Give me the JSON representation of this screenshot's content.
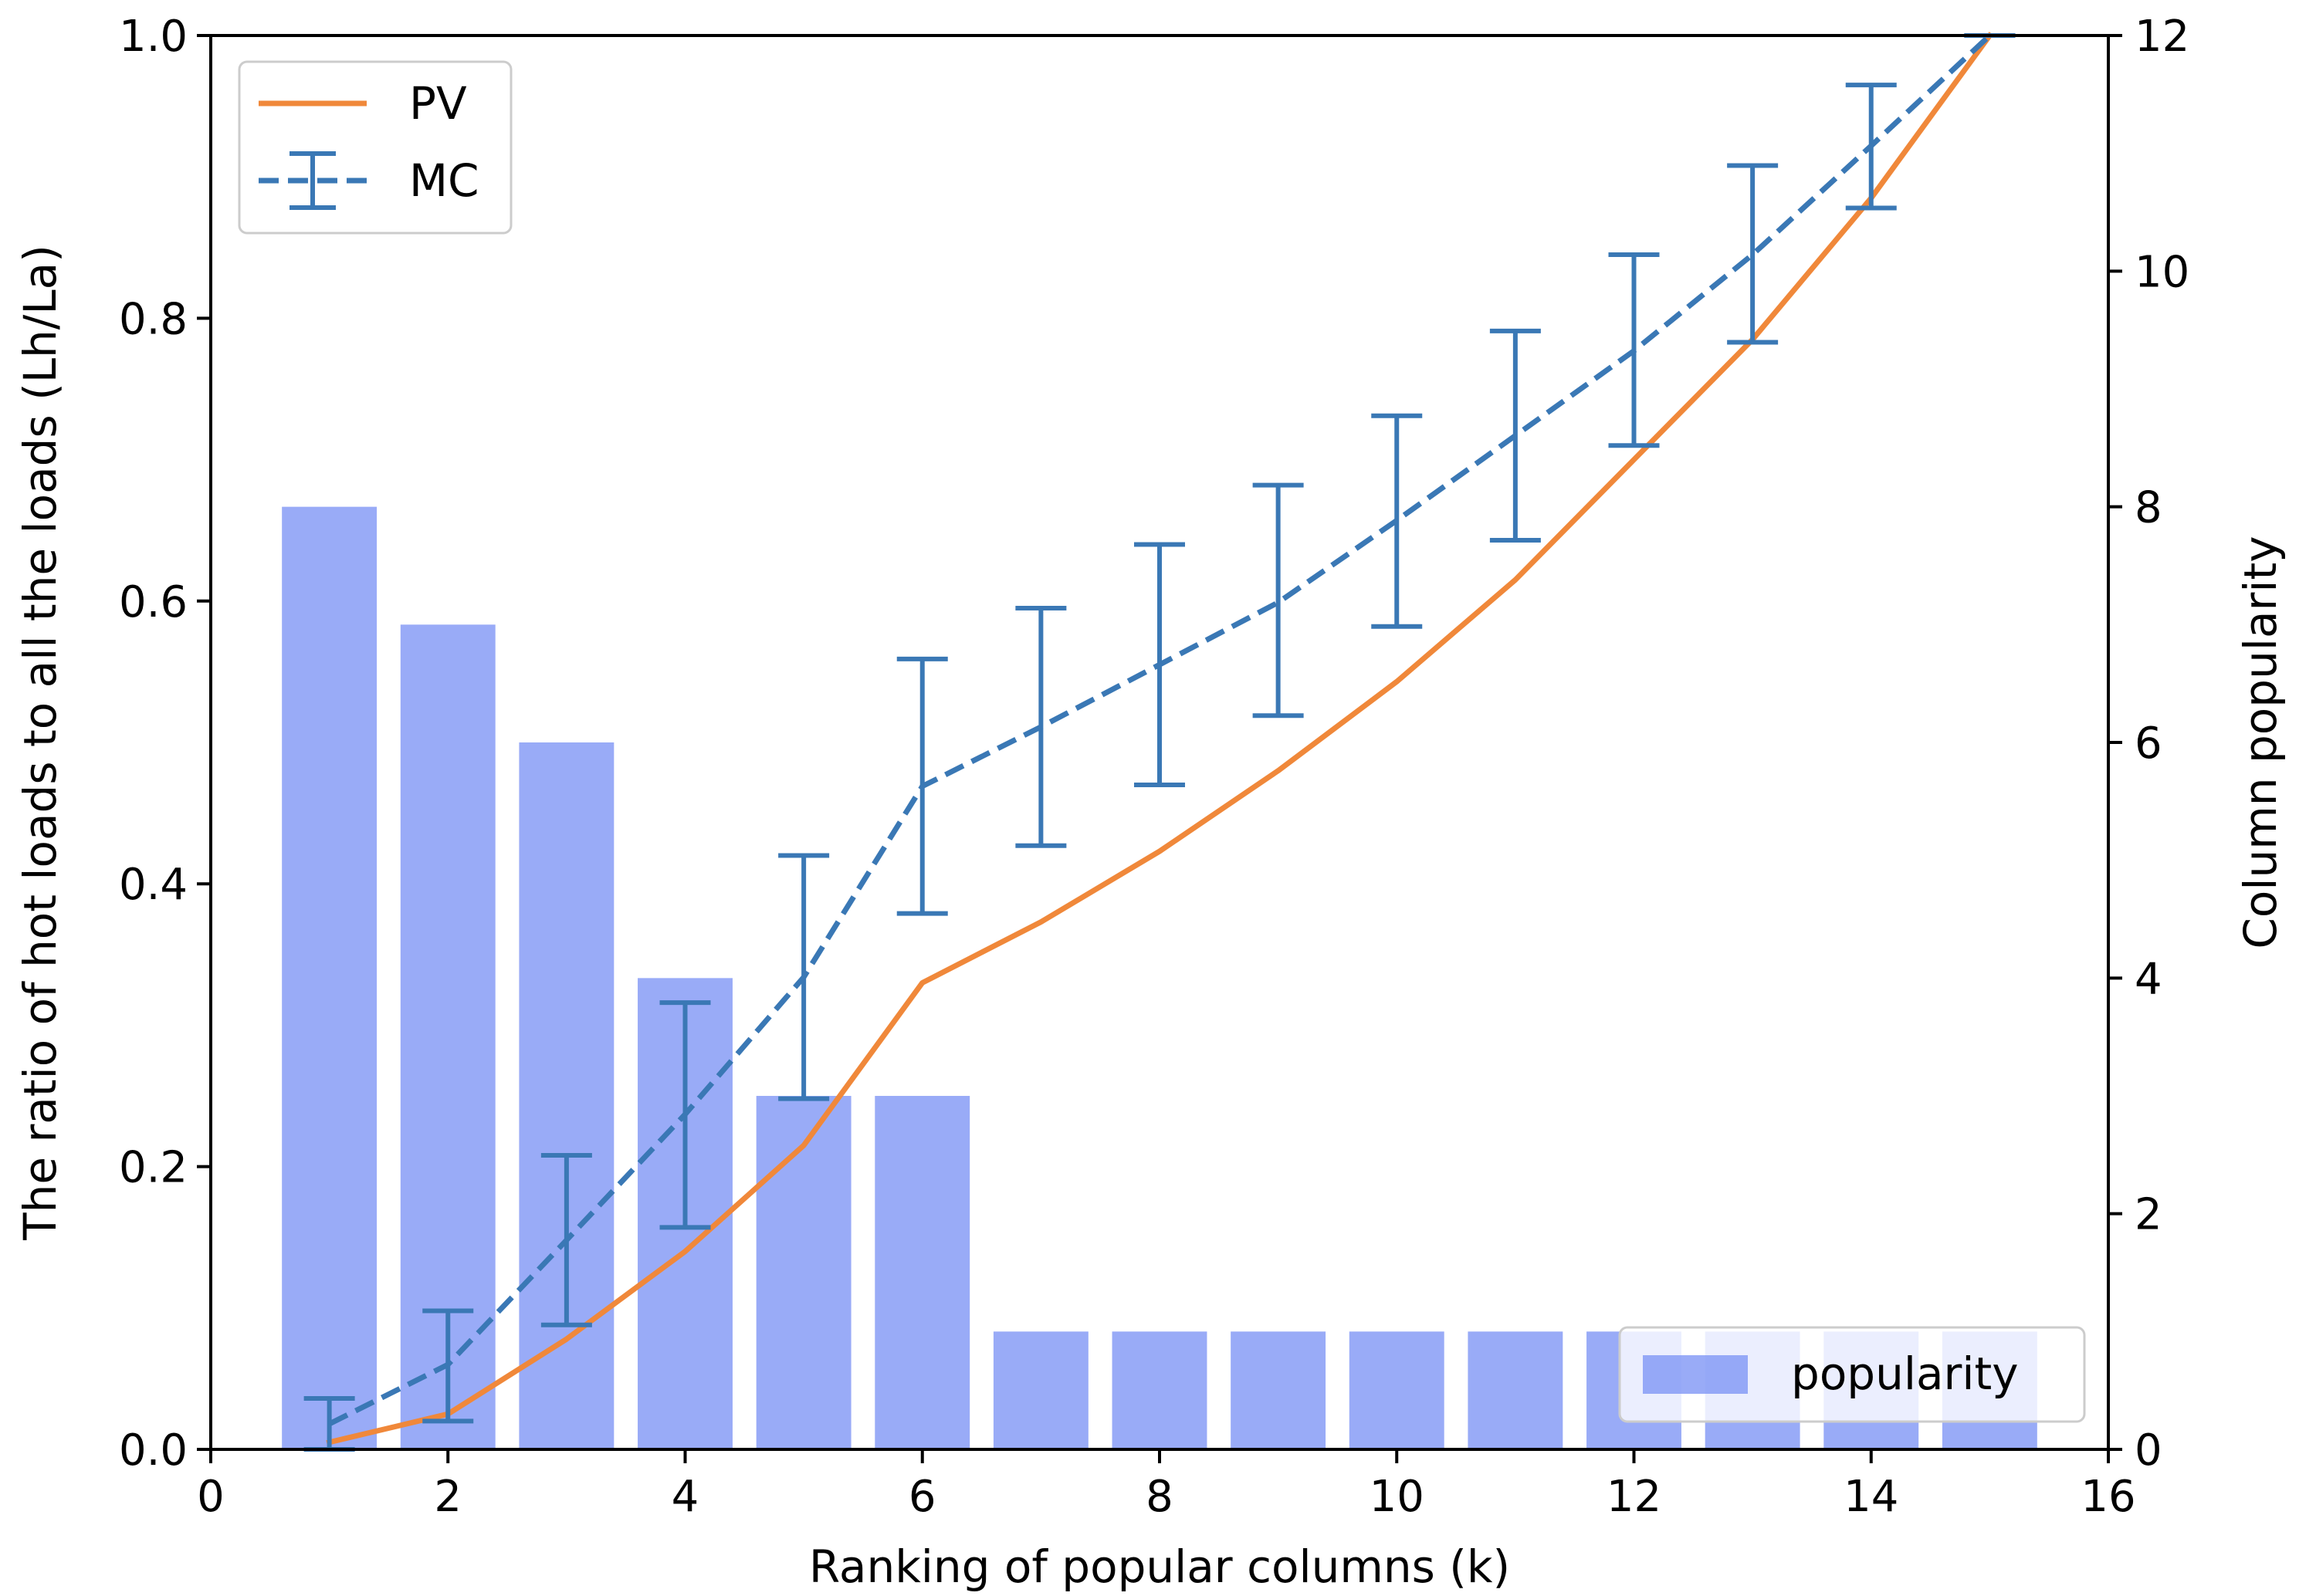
{
  "chart_data": {
    "type": "bar",
    "xlabel": "Ranking of popular columns (k)",
    "ylabel_left": "The ratio of hot loads to all the loads (Lh/La)",
    "ylabel_right": "Column popularity",
    "xlim": [
      0,
      16
    ],
    "ylim_left": [
      0,
      1.0
    ],
    "ylim_right": [
      0,
      12
    ],
    "x_ticks": [
      "0",
      "2",
      "4",
      "6",
      "8",
      "10",
      "12",
      "14",
      "16"
    ],
    "y_left_ticks": [
      "0.0",
      "0.2",
      "0.4",
      "0.6",
      "0.8",
      "1.0"
    ],
    "y_right_ticks": [
      "0",
      "2",
      "4",
      "6",
      "8",
      "10",
      "12"
    ],
    "grid": false,
    "series": [
      {
        "name": "popularity",
        "kind": "bar",
        "axis": "right",
        "color": "#7f96f5",
        "x": [
          1,
          2,
          3,
          4,
          5,
          6,
          7,
          8,
          9,
          10,
          11,
          12,
          13,
          14,
          15
        ],
        "values": [
          8,
          7,
          6,
          4,
          3,
          3,
          1,
          1,
          1,
          1,
          1,
          1,
          1,
          1,
          1
        ]
      },
      {
        "name": "PV",
        "kind": "line",
        "axis": "left",
        "color": "#f0883a",
        "x": [
          1,
          2,
          3,
          4,
          5,
          6,
          7,
          8,
          9,
          10,
          11,
          12,
          13,
          14,
          15
        ],
        "values": [
          0.005,
          0.025,
          0.078,
          0.14,
          0.215,
          0.33,
          0.373,
          0.423,
          0.48,
          0.543,
          0.615,
          0.7,
          0.785,
          0.885,
          1.0
        ]
      },
      {
        "name": "MC",
        "kind": "errorbar",
        "axis": "left",
        "color": "#3a78b5",
        "x": [
          1,
          2,
          3,
          4,
          5,
          6,
          7,
          8,
          9,
          10,
          11,
          12,
          13,
          14,
          15
        ],
        "values": [
          0.018,
          0.06,
          0.148,
          0.237,
          0.334,
          0.469,
          0.511,
          0.555,
          0.599,
          0.657,
          0.717,
          0.777,
          0.845,
          0.922,
          1.0
        ],
        "err_low": [
          0.0,
          0.02,
          0.088,
          0.157,
          0.248,
          0.379,
          0.427,
          0.47,
          0.519,
          0.582,
          0.643,
          0.71,
          0.783,
          0.878,
          1.0
        ],
        "err_high": [
          0.036,
          0.098,
          0.208,
          0.316,
          0.42,
          0.559,
          0.595,
          0.64,
          0.682,
          0.731,
          0.791,
          0.845,
          0.908,
          0.965,
          1.0
        ]
      }
    ],
    "legend_upper": {
      "placement": "upper-left",
      "entries": [
        "PV",
        "MC"
      ]
    },
    "legend_lower": {
      "placement": "lower-right",
      "entries": [
        "popularity"
      ]
    }
  }
}
